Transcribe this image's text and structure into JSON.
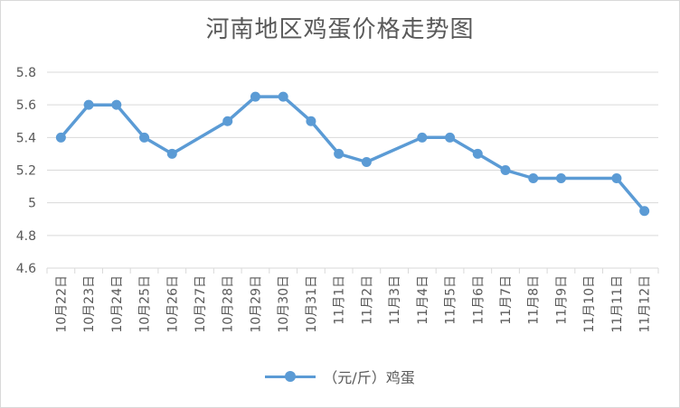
{
  "chart_data": {
    "type": "line",
    "title": "河南地区鸡蛋价格走势图",
    "xlabel": "",
    "ylabel": "",
    "ylim": [
      4.6,
      5.8
    ],
    "yticks": [
      "4.6",
      "4.8",
      "5",
      "5.2",
      "5.4",
      "5.6",
      "5.8"
    ],
    "grid": true,
    "legend_position": "bottom",
    "categories": [
      "10月22日",
      "10月23日",
      "10月24日",
      "10月25日",
      "10月26日",
      "10月27日",
      "10月28日",
      "10月29日",
      "10月30日",
      "10月31日",
      "11月1日",
      "11月2日",
      "11月3日",
      "11月4日",
      "11月5日",
      "11月6日",
      "11月7日",
      "11月8日",
      "11月9日",
      "11月10日",
      "11月11日",
      "11月12日"
    ],
    "series": [
      {
        "name": "（元/斤）鸡蛋",
        "color": "#5B9BD5",
        "values": [
          5.4,
          5.6,
          5.6,
          5.4,
          5.3,
          null,
          5.5,
          5.65,
          5.65,
          5.5,
          5.3,
          5.25,
          null,
          5.4,
          5.4,
          5.3,
          5.2,
          5.15,
          5.15,
          null,
          5.15,
          4.95
        ]
      }
    ]
  }
}
